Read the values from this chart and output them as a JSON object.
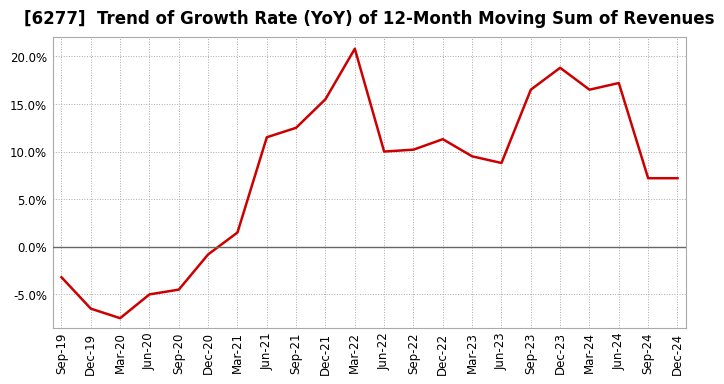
{
  "title": "[6277]  Trend of Growth Rate (YoY) of 12-Month Moving Sum of Revenues",
  "x_labels": [
    "Sep-19",
    "Dec-19",
    "Mar-20",
    "Jun-20",
    "Sep-20",
    "Dec-20",
    "Mar-21",
    "Jun-21",
    "Sep-21",
    "Dec-21",
    "Mar-22",
    "Jun-22",
    "Sep-22",
    "Dec-22",
    "Mar-23",
    "Jun-23",
    "Sep-23",
    "Dec-23",
    "Mar-24",
    "Jun-24",
    "Sep-24",
    "Dec-24"
  ],
  "y_values": [
    -3.2,
    -6.5,
    -7.5,
    -5.0,
    -4.5,
    -0.8,
    1.5,
    11.5,
    12.5,
    15.5,
    20.8,
    10.0,
    10.2,
    11.3,
    9.5,
    8.8,
    16.5,
    18.8,
    16.5,
    17.2,
    7.2,
    7.2
  ],
  "line_color": "#cc0000",
  "line_width": 1.8,
  "bg_color": "#ffffff",
  "plot_bg_color": "#ffffff",
  "grid_color": "#aaaaaa",
  "zero_line_color": "#666666",
  "ylim": [
    -8.5,
    22.0
  ],
  "yticks": [
    -5.0,
    0.0,
    5.0,
    10.0,
    15.0,
    20.0
  ],
  "title_fontsize": 12,
  "tick_fontsize": 8.5
}
